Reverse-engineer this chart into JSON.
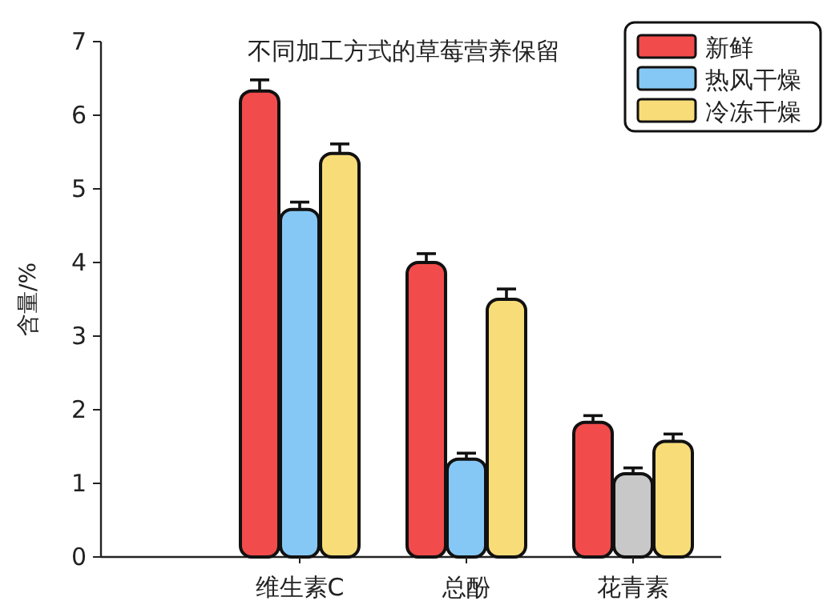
{
  "chart_data": {
    "type": "bar",
    "title": "不同加工方式的草莓营养保留",
    "ylabel": "含量/%",
    "categories": [
      "维生素C",
      "总酚",
      "花青素"
    ],
    "series": [
      {
        "name": "新鲜",
        "color": "#f24b4b",
        "values": [
          6.33,
          4.0,
          1.83
        ],
        "errors": [
          0.15,
          0.12,
          0.09
        ]
      },
      {
        "name": "热风干燥",
        "color": "#86c8f5",
        "colors": [
          "#86c8f5",
          "#86c8f5",
          "#c8c8c8"
        ],
        "values": [
          4.72,
          1.33,
          1.13
        ],
        "errors": [
          0.1,
          0.08,
          0.08
        ]
      },
      {
        "name": "冷冻干燥",
        "color": "#f8dc78",
        "values": [
          5.48,
          3.5,
          1.57
        ],
        "errors": [
          0.13,
          0.14,
          0.1
        ]
      }
    ],
    "ylim": [
      0,
      7
    ],
    "yticks": [
      0,
      1,
      2,
      3,
      4,
      5,
      6,
      7
    ],
    "legend": "top right",
    "grid": false
  }
}
